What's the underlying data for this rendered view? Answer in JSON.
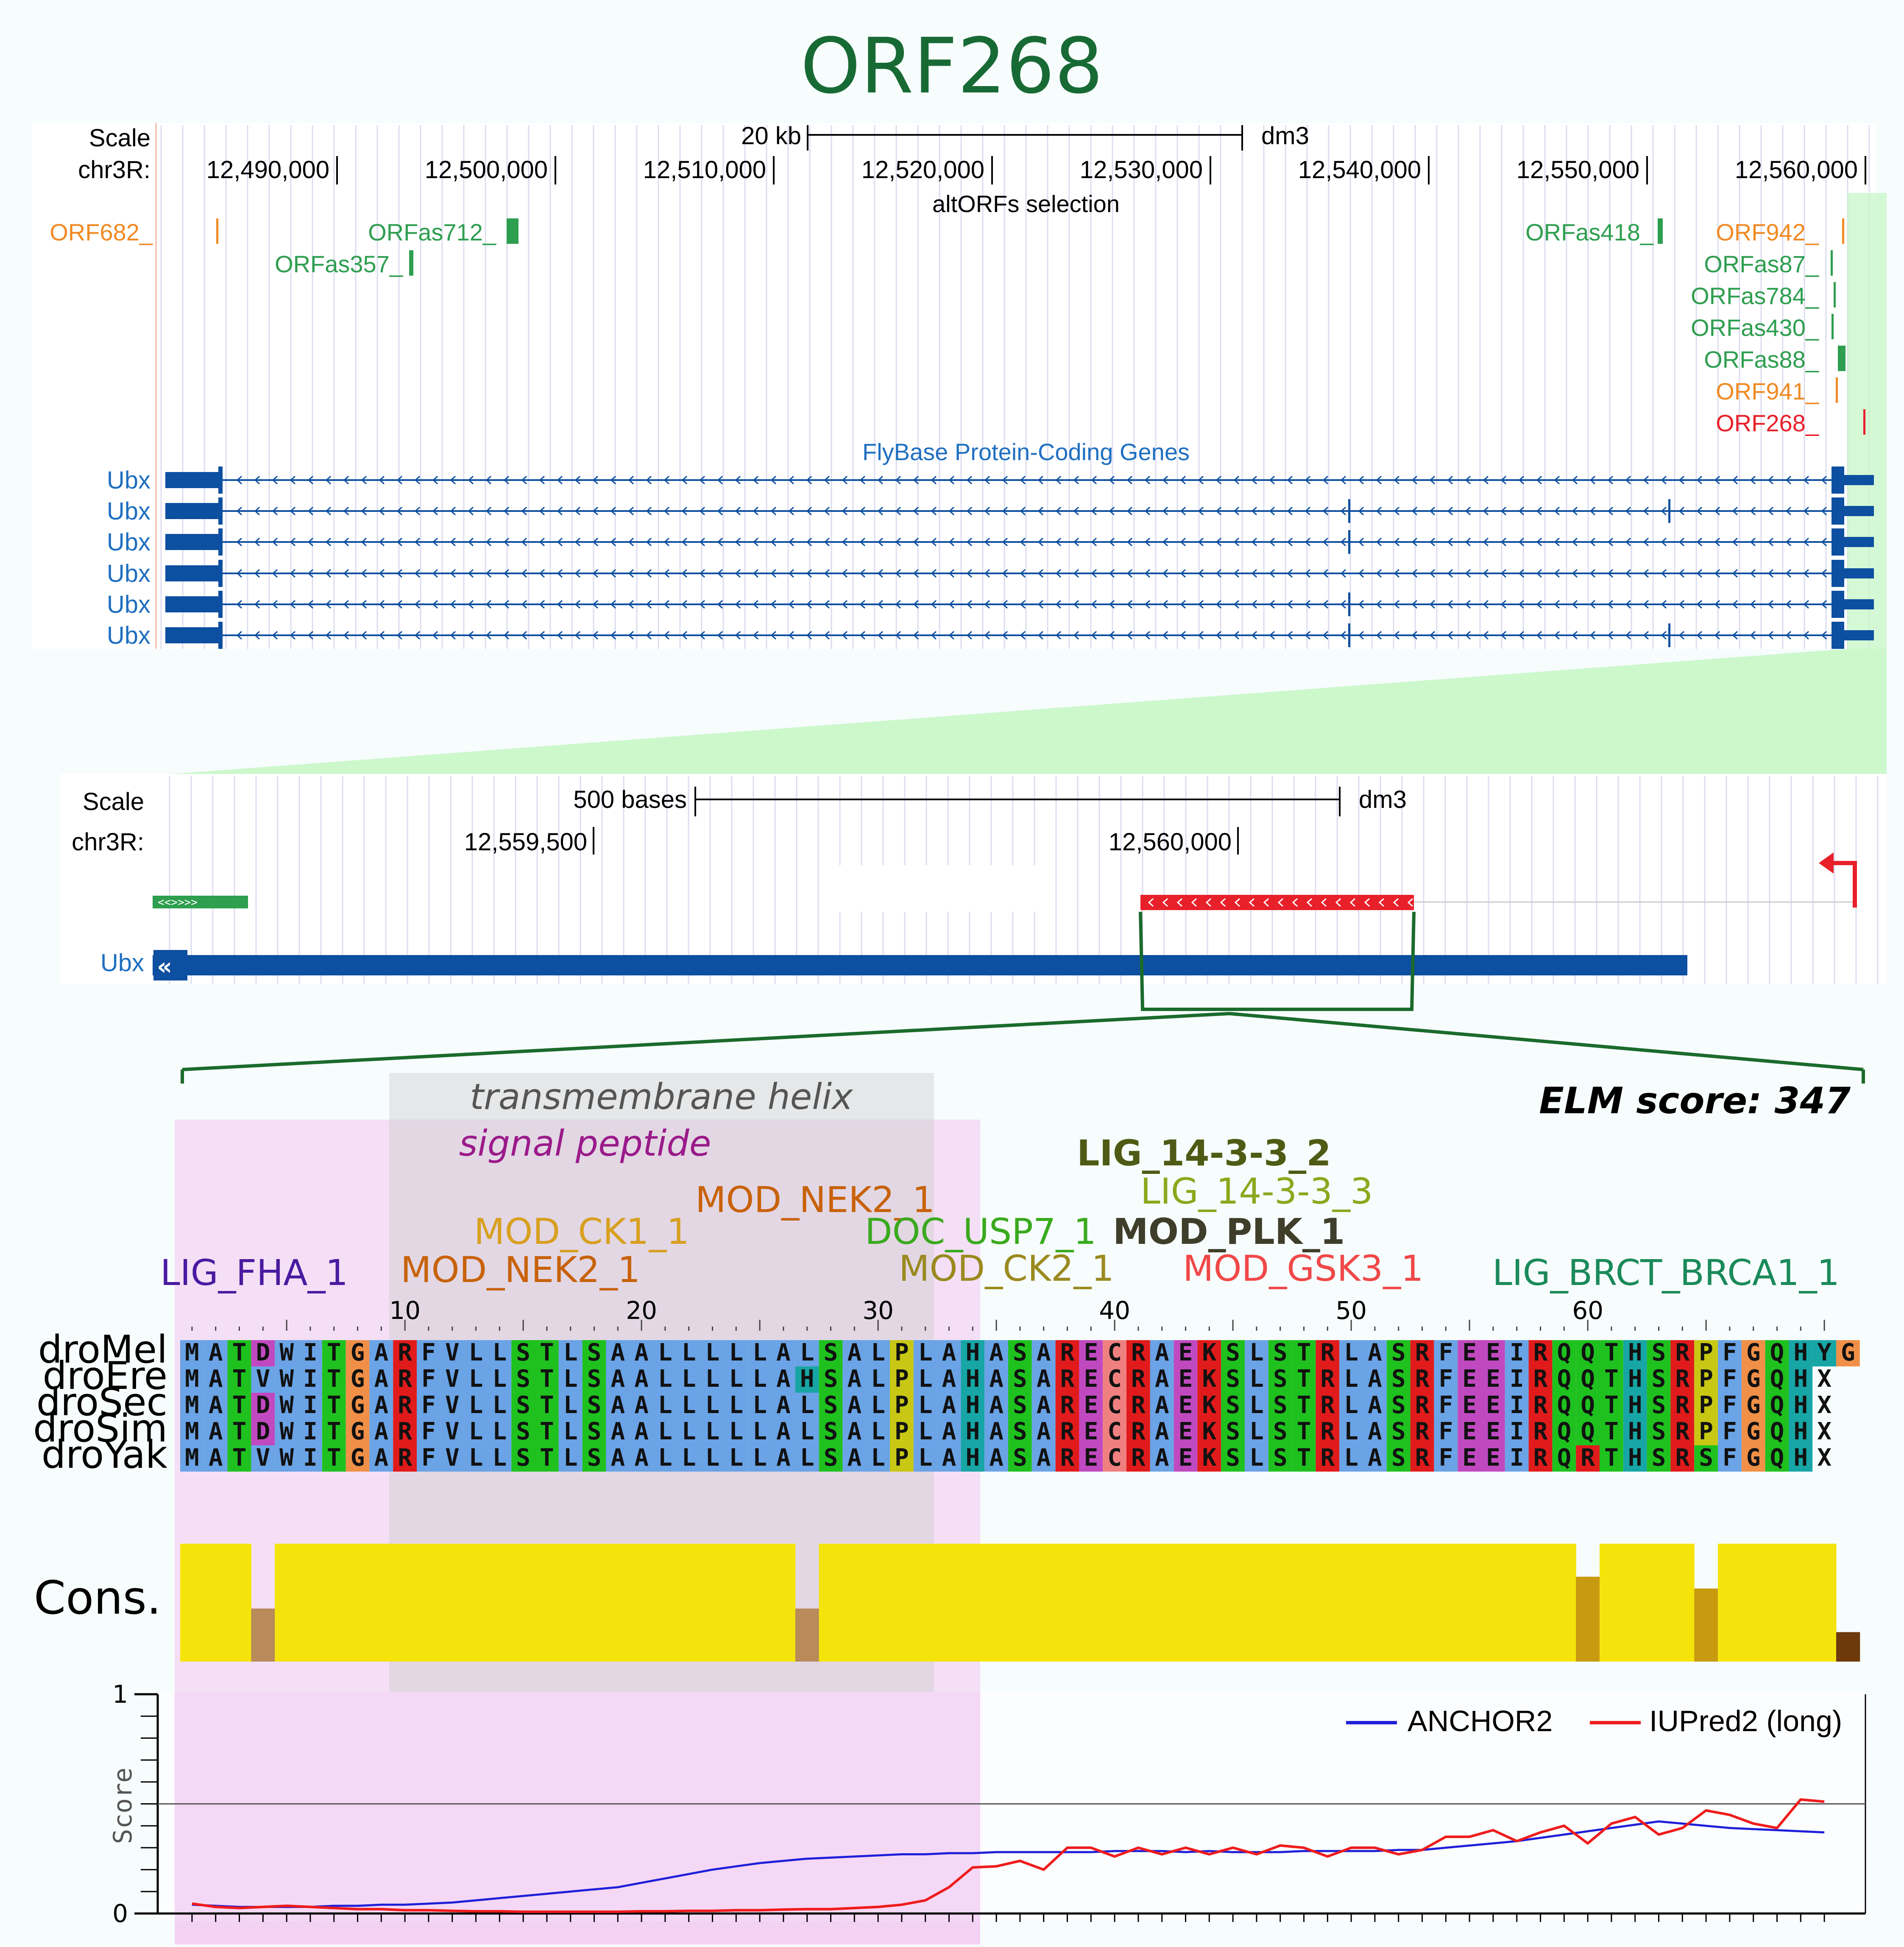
{
  "title": "ORF268",
  "browser1": {
    "scale_label": "Scale",
    "chrom_label": "chr3R:",
    "scale_bar_label": "20 kb",
    "assembly": "dm3",
    "ticks": [
      "12,490,000",
      "12,500,000",
      "12,510,000",
      "12,520,000",
      "12,530,000",
      "12,540,000",
      "12,550,000",
      "12,560,000"
    ],
    "track_title": "altORFs selection",
    "orfs": [
      {
        "label": "ORF682_",
        "color": "#f08a24"
      },
      {
        "label": "ORFas712_",
        "color": "#2e9e4f"
      },
      {
        "label": "ORFas357_",
        "color": "#2e9e4f"
      },
      {
        "label": "ORFas418_",
        "color": "#2e9e4f"
      },
      {
        "label": "ORF942_",
        "color": "#f08a24"
      },
      {
        "label": "ORFas87_",
        "color": "#2e9e4f"
      },
      {
        "label": "ORFas784_",
        "color": "#2e9e4f"
      },
      {
        "label": "ORFas430_",
        "color": "#2e9e4f"
      },
      {
        "label": "ORFas88_",
        "color": "#2e9e4f"
      },
      {
        "label": "ORF941_",
        "color": "#f08a24"
      },
      {
        "label": "ORF268_",
        "color": "#e8202a"
      }
    ],
    "genes_title": "FlyBase Protein-Coding Genes",
    "genes": [
      "Ubx",
      "Ubx",
      "Ubx",
      "Ubx",
      "Ubx",
      "Ubx"
    ]
  },
  "browser2": {
    "scale_label": "Scale",
    "chrom_label": "chr3R:",
    "scale_bar_label": "500 bases",
    "assembly": "dm3",
    "ticks": [
      "12,559,500",
      "12,560,000"
    ],
    "gene": "Ubx"
  },
  "alignment": {
    "elm_score": "ELM score: 347",
    "tm_label": "transmembrane helix",
    "sp_label": "signal peptide",
    "motifs": [
      {
        "label": "LIG_14-3-3_2",
        "color": "#4f5a14",
        "bold": true
      },
      {
        "label": "LIG_14-3-3_3",
        "color": "#8aa81e",
        "bold": false
      },
      {
        "label": "MOD_NEK2_1",
        "color": "#c8620a",
        "bold": false
      },
      {
        "label": "MOD_CK1_1",
        "color": "#d8a020",
        "bold": false
      },
      {
        "label": "DOC_USP7_1",
        "color": "#3aaa1e",
        "bold": false
      },
      {
        "label": "MOD_PLK_1",
        "color": "#3e3e2a",
        "bold": true
      },
      {
        "label": "LIG_FHA_1",
        "color": "#4a1aa0",
        "bold": false
      },
      {
        "label": "MOD_NEK2_1",
        "color": "#c8620a",
        "bold": false
      },
      {
        "label": "MOD_CK2_1",
        "color": "#9a8a20",
        "bold": false
      },
      {
        "label": "MOD_GSK3_1",
        "color": "#f04848",
        "bold": false
      },
      {
        "label": "LIG_BRCT_BRCA1_1",
        "color": "#1a8a5a",
        "bold": false
      }
    ],
    "positions": [
      "10",
      "20",
      "30",
      "40",
      "50",
      "60"
    ],
    "sequences": [
      {
        "name": "droMel",
        "seq": "MATDWITGARFVLLSTLSAALLLLLALSALPLAHASARECRAEKSLSTRLASRFEEIRQQTHSRPFGQHYG"
      },
      {
        "name": "droEre",
        "seq": "MATVWITGARFVLLSTLSAALLLLLAHSALPLAHASARECRAEKSLSTRLASRFEEIRQQTHSRPFGQHX"
      },
      {
        "name": "droSec",
        "seq": "MATDWITGARFVLLSTLSAALLLLLALSALPLAHASARECRAEKSLSTRLASRFEEIRQQTHSRPFGQHX"
      },
      {
        "name": "droSim",
        "seq": "MATDWITGARFVLLSTLSAALLLLLALSALPLAHASARECRAEKSLSTRLASRFEEIRQQTHSRPFGQHX"
      },
      {
        "name": "droYak",
        "seq": "MATVWITGARFVLLSTLSAALLLLLALSALPLAHASARECRAEKSLSTRLASRFEEIRQRTHSRSFGQHX"
      }
    ],
    "cons_label": "Cons.",
    "conservation": [
      1,
      1,
      1,
      0.45,
      1,
      1,
      1,
      1,
      1,
      1,
      1,
      1,
      1,
      1,
      1,
      1,
      1,
      1,
      1,
      1,
      1,
      1,
      1,
      1,
      1,
      1,
      0.45,
      1,
      1,
      1,
      1,
      1,
      1,
      1,
      1,
      1,
      1,
      1,
      1,
      1,
      1,
      1,
      1,
      1,
      1,
      1,
      1,
      1,
      1,
      1,
      1,
      1,
      1,
      1,
      1,
      1,
      1,
      1,
      1,
      0.72,
      1,
      1,
      1,
      1,
      0.62,
      1,
      1,
      1,
      1,
      1,
      0.25
    ]
  },
  "score_plot": {
    "ylabel": "Score",
    "yticks": [
      "0",
      "1"
    ],
    "ylim": [
      0,
      1
    ],
    "threshold": 0.5,
    "legend": [
      {
        "name": "ANCHOR2",
        "color": "#1f1fd8"
      },
      {
        "name": "IUPred2 (long)",
        "color": "#ee1c1c"
      }
    ]
  },
  "colors": {
    "title": "#186a34",
    "gene": "#0d4fa0",
    "orf_highlight": "#e8202a",
    "zoom": "#c7f7c7",
    "region": "#f3c6f0",
    "bracket": "#1b6b2c"
  }
}
